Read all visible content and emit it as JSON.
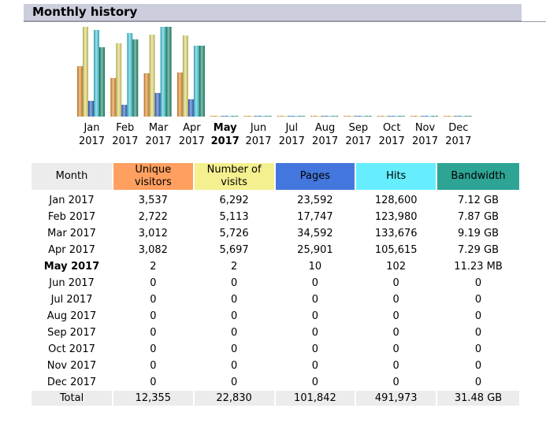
{
  "page": {
    "title": "Monthly history"
  },
  "colors": {
    "unique_visitors": "#ffa060",
    "visits": "#f4f090",
    "pages": "#4477dd",
    "hits": "#66eeff",
    "bandwidth": "#2ea495",
    "month_header": "#ececec",
    "title_bar": "#cccddd"
  },
  "chart_data": {
    "type": "bar",
    "categories": [
      [
        "Jan",
        "2017"
      ],
      [
        "Feb",
        "2017"
      ],
      [
        "Mar",
        "2017"
      ],
      [
        "Apr",
        "2017"
      ],
      [
        "May",
        "2017"
      ],
      [
        "Jun",
        "2017"
      ],
      [
        "Jul",
        "2017"
      ],
      [
        "Aug",
        "2017"
      ],
      [
        "Sep",
        "2017"
      ],
      [
        "Oct",
        "2017"
      ],
      [
        "Nov",
        "2017"
      ],
      [
        "Dec",
        "2017"
      ]
    ],
    "current_index": 4,
    "series": [
      {
        "name": "Unique visitors",
        "color": "#e89030",
        "values": [
          3537,
          2722,
          3012,
          3082,
          2,
          0,
          0,
          0,
          0,
          0,
          0,
          0
        ]
      },
      {
        "name": "Number of visits",
        "color": "#e4dc70",
        "values": [
          6292,
          5113,
          5726,
          5697,
          2,
          0,
          0,
          0,
          0,
          0,
          0,
          0
        ]
      },
      {
        "name": "Pages",
        "color": "#3366cc",
        "values": [
          23592,
          17747,
          34592,
          25901,
          10,
          0,
          0,
          0,
          0,
          0,
          0,
          0
        ]
      },
      {
        "name": "Hits",
        "color": "#44ccdd",
        "values": [
          128600,
          123980,
          133676,
          105615,
          102,
          0,
          0,
          0,
          0,
          0,
          0,
          0
        ]
      },
      {
        "name": "Bandwidth",
        "color": "#1d8c70",
        "values": [
          7.12,
          7.87,
          9.19,
          7.29,
          0.011,
          0,
          0,
          0,
          0,
          0,
          0,
          0
        ]
      }
    ]
  },
  "table": {
    "headers": [
      "Month",
      "Unique visitors",
      "Number of visits",
      "Pages",
      "Hits",
      "Bandwidth"
    ],
    "rows": [
      [
        "Jan 2017",
        "3,537",
        "6,292",
        "23,592",
        "128,600",
        "7.12 GB"
      ],
      [
        "Feb 2017",
        "2,722",
        "5,113",
        "17,747",
        "123,980",
        "7.87 GB"
      ],
      [
        "Mar 2017",
        "3,012",
        "5,726",
        "34,592",
        "133,676",
        "9.19 GB"
      ],
      [
        "Apr 2017",
        "3,082",
        "5,697",
        "25,901",
        "105,615",
        "7.29 GB"
      ],
      [
        "May 2017",
        "2",
        "2",
        "10",
        "102",
        "11.23 MB"
      ],
      [
        "Jun 2017",
        "0",
        "0",
        "0",
        "0",
        "0"
      ],
      [
        "Jul 2017",
        "0",
        "0",
        "0",
        "0",
        "0"
      ],
      [
        "Aug 2017",
        "0",
        "0",
        "0",
        "0",
        "0"
      ],
      [
        "Sep 2017",
        "0",
        "0",
        "0",
        "0",
        "0"
      ],
      [
        "Oct 2017",
        "0",
        "0",
        "0",
        "0",
        "0"
      ],
      [
        "Nov 2017",
        "0",
        "0",
        "0",
        "0",
        "0"
      ],
      [
        "Dec 2017",
        "0",
        "0",
        "0",
        "0",
        "0"
      ]
    ],
    "current_row": 4,
    "total": [
      "Total",
      "12,355",
      "22,830",
      "101,842",
      "491,973",
      "31.48 GB"
    ]
  }
}
